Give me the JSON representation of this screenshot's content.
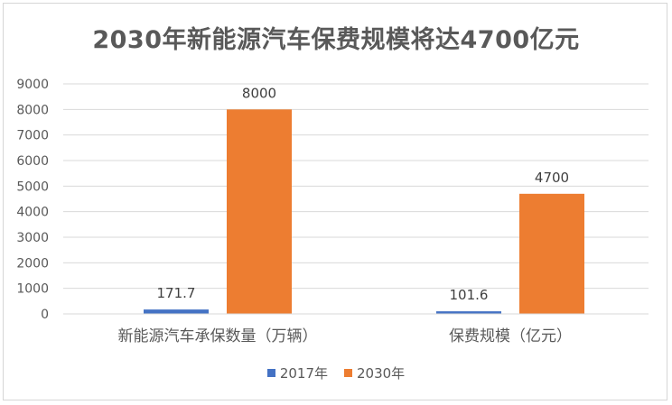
{
  "chart_data": {
    "type": "bar",
    "title": "2030年新能源汽车保费规模将达4700亿元",
    "categories": [
      "新能源汽车承保数量（万辆）",
      "保费规模（亿元）"
    ],
    "series": [
      {
        "name": "2017年",
        "values": [
          171.7,
          101.6
        ],
        "color": "#4472C4"
      },
      {
        "name": "2030年",
        "values": [
          8000,
          4700
        ],
        "color": "#ED7D31"
      }
    ],
    "ylim": [
      0,
      9000
    ],
    "yticks": [
      0,
      1000,
      2000,
      3000,
      4000,
      5000,
      6000,
      7000,
      8000,
      9000
    ],
    "grid": true,
    "legend_position": "bottom",
    "data_labels": [
      [
        "171.7",
        "8000"
      ],
      [
        "101.6",
        "4700"
      ]
    ]
  }
}
